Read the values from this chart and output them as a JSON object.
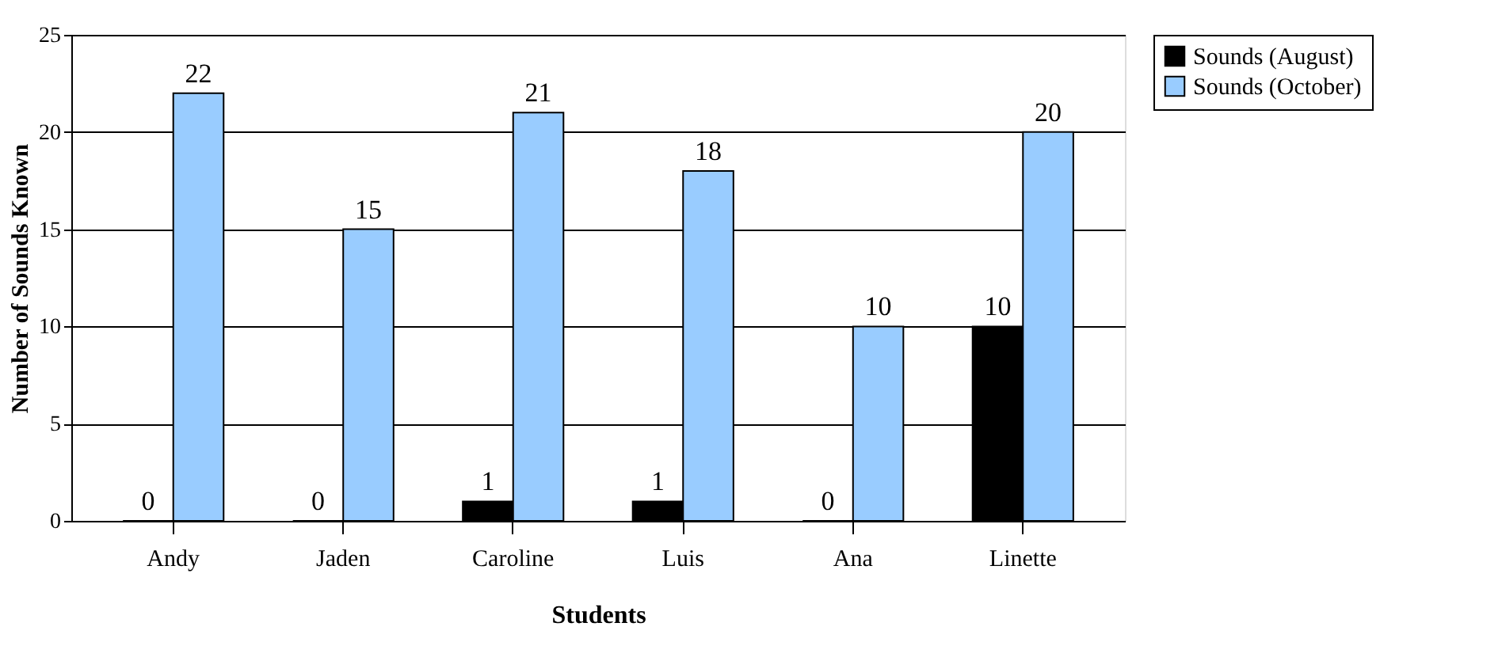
{
  "chart_data": {
    "type": "bar",
    "xlabel": "Students",
    "ylabel": "Number of Sounds Known",
    "categories": [
      "Andy",
      "Jaden",
      "Caroline",
      "Luis",
      "Ana",
      "Linette"
    ],
    "series": [
      {
        "name": "Sounds (August)",
        "color": "#000000",
        "values": [
          0,
          0,
          1,
          1,
          0,
          10
        ]
      },
      {
        "name": "Sounds (October)",
        "color": "#99ccff",
        "values": [
          22,
          15,
          21,
          18,
          10,
          20
        ]
      }
    ],
    "ylim": [
      0,
      25
    ],
    "yticks": [
      0,
      5,
      10,
      15,
      20,
      25
    ],
    "grid": "y",
    "legend": "right",
    "data_labels": true
  }
}
